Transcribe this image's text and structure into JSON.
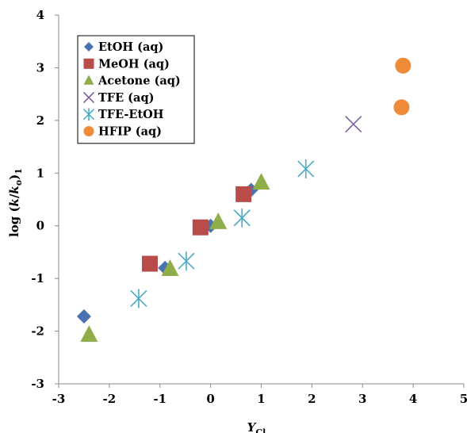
{
  "chart_data": {
    "type": "scatter",
    "xlabel": "Y",
    "xlabel_sub": "Cl",
    "ylabel": "log (k/k",
    "ylabel_sub": "o",
    "ylabel_end": ")",
    "ylabel_sub2": "1",
    "xlim": [
      -3,
      5
    ],
    "ylim": [
      -3,
      4
    ],
    "xticks": [
      -3,
      -2,
      -1,
      0,
      1,
      2,
      3,
      4,
      5
    ],
    "yticks": [
      -3,
      -2,
      -1,
      0,
      1,
      2,
      3,
      4
    ],
    "grid": false,
    "legend_position": "top-left",
    "series": [
      {
        "name": "EtOH (aq)",
        "marker": "diamond",
        "color": "#4a72b0",
        "points": [
          [
            -2.5,
            -1.72
          ],
          [
            -0.9,
            -0.8
          ],
          [
            0.0,
            0.0
          ],
          [
            0.8,
            0.68
          ]
        ]
      },
      {
        "name": "MeOH (aq)",
        "marker": "square",
        "color": "#b74c48",
        "points": [
          [
            -1.2,
            -0.72
          ],
          [
            -0.2,
            -0.03
          ],
          [
            0.65,
            0.6
          ]
        ]
      },
      {
        "name": "Acetone (aq)",
        "marker": "triangle",
        "color": "#8fae4a",
        "points": [
          [
            -2.4,
            -2.07
          ],
          [
            -0.8,
            -0.82
          ],
          [
            0.15,
            0.07
          ],
          [
            1.0,
            0.82
          ]
        ]
      },
      {
        "name": "TFE (aq)",
        "marker": "x",
        "color": "#7d60a0",
        "points": [
          [
            2.82,
            1.93
          ]
        ]
      },
      {
        "name": "TFE-EtOH",
        "marker": "asterisk",
        "color": "#4aabc5",
        "points": [
          [
            -1.42,
            -1.38
          ],
          [
            -0.48,
            -0.67
          ],
          [
            0.62,
            0.15
          ],
          [
            1.88,
            1.08
          ]
        ]
      },
      {
        "name": "HFIP (aq)",
        "marker": "circle",
        "color": "#ef8a38",
        "points": [
          [
            3.8,
            3.04
          ],
          [
            3.77,
            2.25
          ]
        ]
      }
    ]
  }
}
